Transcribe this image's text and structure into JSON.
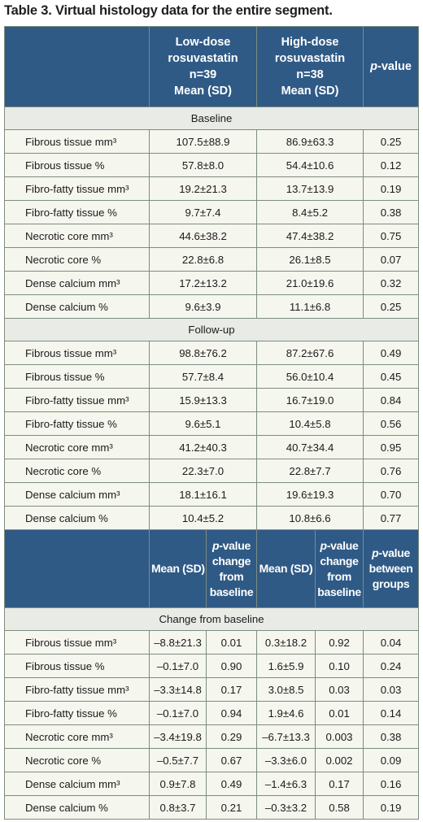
{
  "caption": "Table 3. Virtual histology data for the entire segment.",
  "header": {
    "low_dose": [
      "Low-dose",
      "rosuvastatin",
      "n=39",
      "Mean (SD)"
    ],
    "high_dose": [
      "High-dose",
      "rosuvastatin",
      "n=38",
      "Mean (SD)"
    ],
    "p_value": [
      "p",
      "-value"
    ]
  },
  "baseline": {
    "title": "Baseline",
    "rows": [
      [
        "Fibrous tissue mm³",
        "107.5±88.9",
        "86.9±63.3",
        "0.25"
      ],
      [
        "Fibrous tissue %",
        "57.8±8.0",
        "54.4±10.6",
        "0.12"
      ],
      [
        "Fibro-fatty tissue mm³",
        "19.2±21.3",
        "13.7±13.9",
        "0.19"
      ],
      [
        "Fibro-fatty tissue %",
        "9.7±7.4",
        "8.4±5.2",
        "0.38"
      ],
      [
        "Necrotic core mm³",
        "44.6±38.2",
        "47.4±38.2",
        "0.75"
      ],
      [
        "Necrotic core %",
        "22.8±6.8",
        "26.1±8.5",
        "0.07"
      ],
      [
        "Dense calcium mm³",
        "17.2±13.2",
        "21.0±19.6",
        "0.32"
      ],
      [
        "Dense calcium %",
        "9.6±3.9",
        "11.1±6.8",
        "0.25"
      ]
    ]
  },
  "followup": {
    "title": "Follow-up",
    "rows": [
      [
        "Fibrous tissue mm³",
        "98.8±76.2",
        "87.2±67.6",
        "0.49"
      ],
      [
        "Fibrous tissue %",
        "57.7±8.4",
        "56.0±10.4",
        "0.45"
      ],
      [
        "Fibro-fatty tissue mm³",
        "15.9±13.3",
        "16.7±19.0",
        "0.84"
      ],
      [
        "Fibro-fatty tissue %",
        "9.6±5.1",
        "10.4±5.8",
        "0.56"
      ],
      [
        "Necrotic core mm³",
        "41.2±40.3",
        "40.7±34.4",
        "0.95"
      ],
      [
        "Necrotic core %",
        "22.3±7.0",
        "22.8±7.7",
        "0.76"
      ],
      [
        "Dense calcium mm³",
        "18.1±16.1",
        "19.6±19.3",
        "0.70"
      ],
      [
        "Dense calcium %",
        "10.4±5.2",
        "10.8±6.6",
        "0.77"
      ]
    ]
  },
  "change_header": {
    "mean": "Mean (SD)",
    "p_from": [
      "p",
      "-value",
      "change",
      "from",
      "baseline"
    ],
    "p_between": [
      "p",
      "-value",
      "between",
      "groups"
    ]
  },
  "change": {
    "title": "Change from baseline",
    "rows": [
      [
        "Fibrous tissue mm³",
        "–8.8±21.3",
        "0.01",
        "0.3±18.2",
        "0.92",
        "0.04"
      ],
      [
        "Fibrous tissue %",
        "–0.1±7.0",
        "0.90",
        "1.6±5.9",
        "0.10",
        "0.24"
      ],
      [
        "Fibro-fatty tissue mm³",
        "–3.3±14.8",
        "0.17",
        "3.0±8.5",
        "0.03",
        "0.03"
      ],
      [
        "Fibro-fatty tissue %",
        "–0.1±7.0",
        "0.94",
        "1.9±4.6",
        "0.01",
        "0.14"
      ],
      [
        "Necrotic core mm³",
        "–3.4±19.8",
        "0.29",
        "–6.7±13.3",
        "0.003",
        "0.38"
      ],
      [
        "Necrotic core %",
        "–0.5±7.7",
        "0.67",
        "–3.3±6.0",
        "0.002",
        "0.09"
      ],
      [
        "Dense calcium mm³",
        "0.9±7.8",
        "0.49",
        "–1.4±6.3",
        "0.17",
        "0.16"
      ],
      [
        "Dense calcium %",
        "0.8±3.7",
        "0.21",
        "–0.3±3.2",
        "0.58",
        "0.19"
      ]
    ]
  }
}
